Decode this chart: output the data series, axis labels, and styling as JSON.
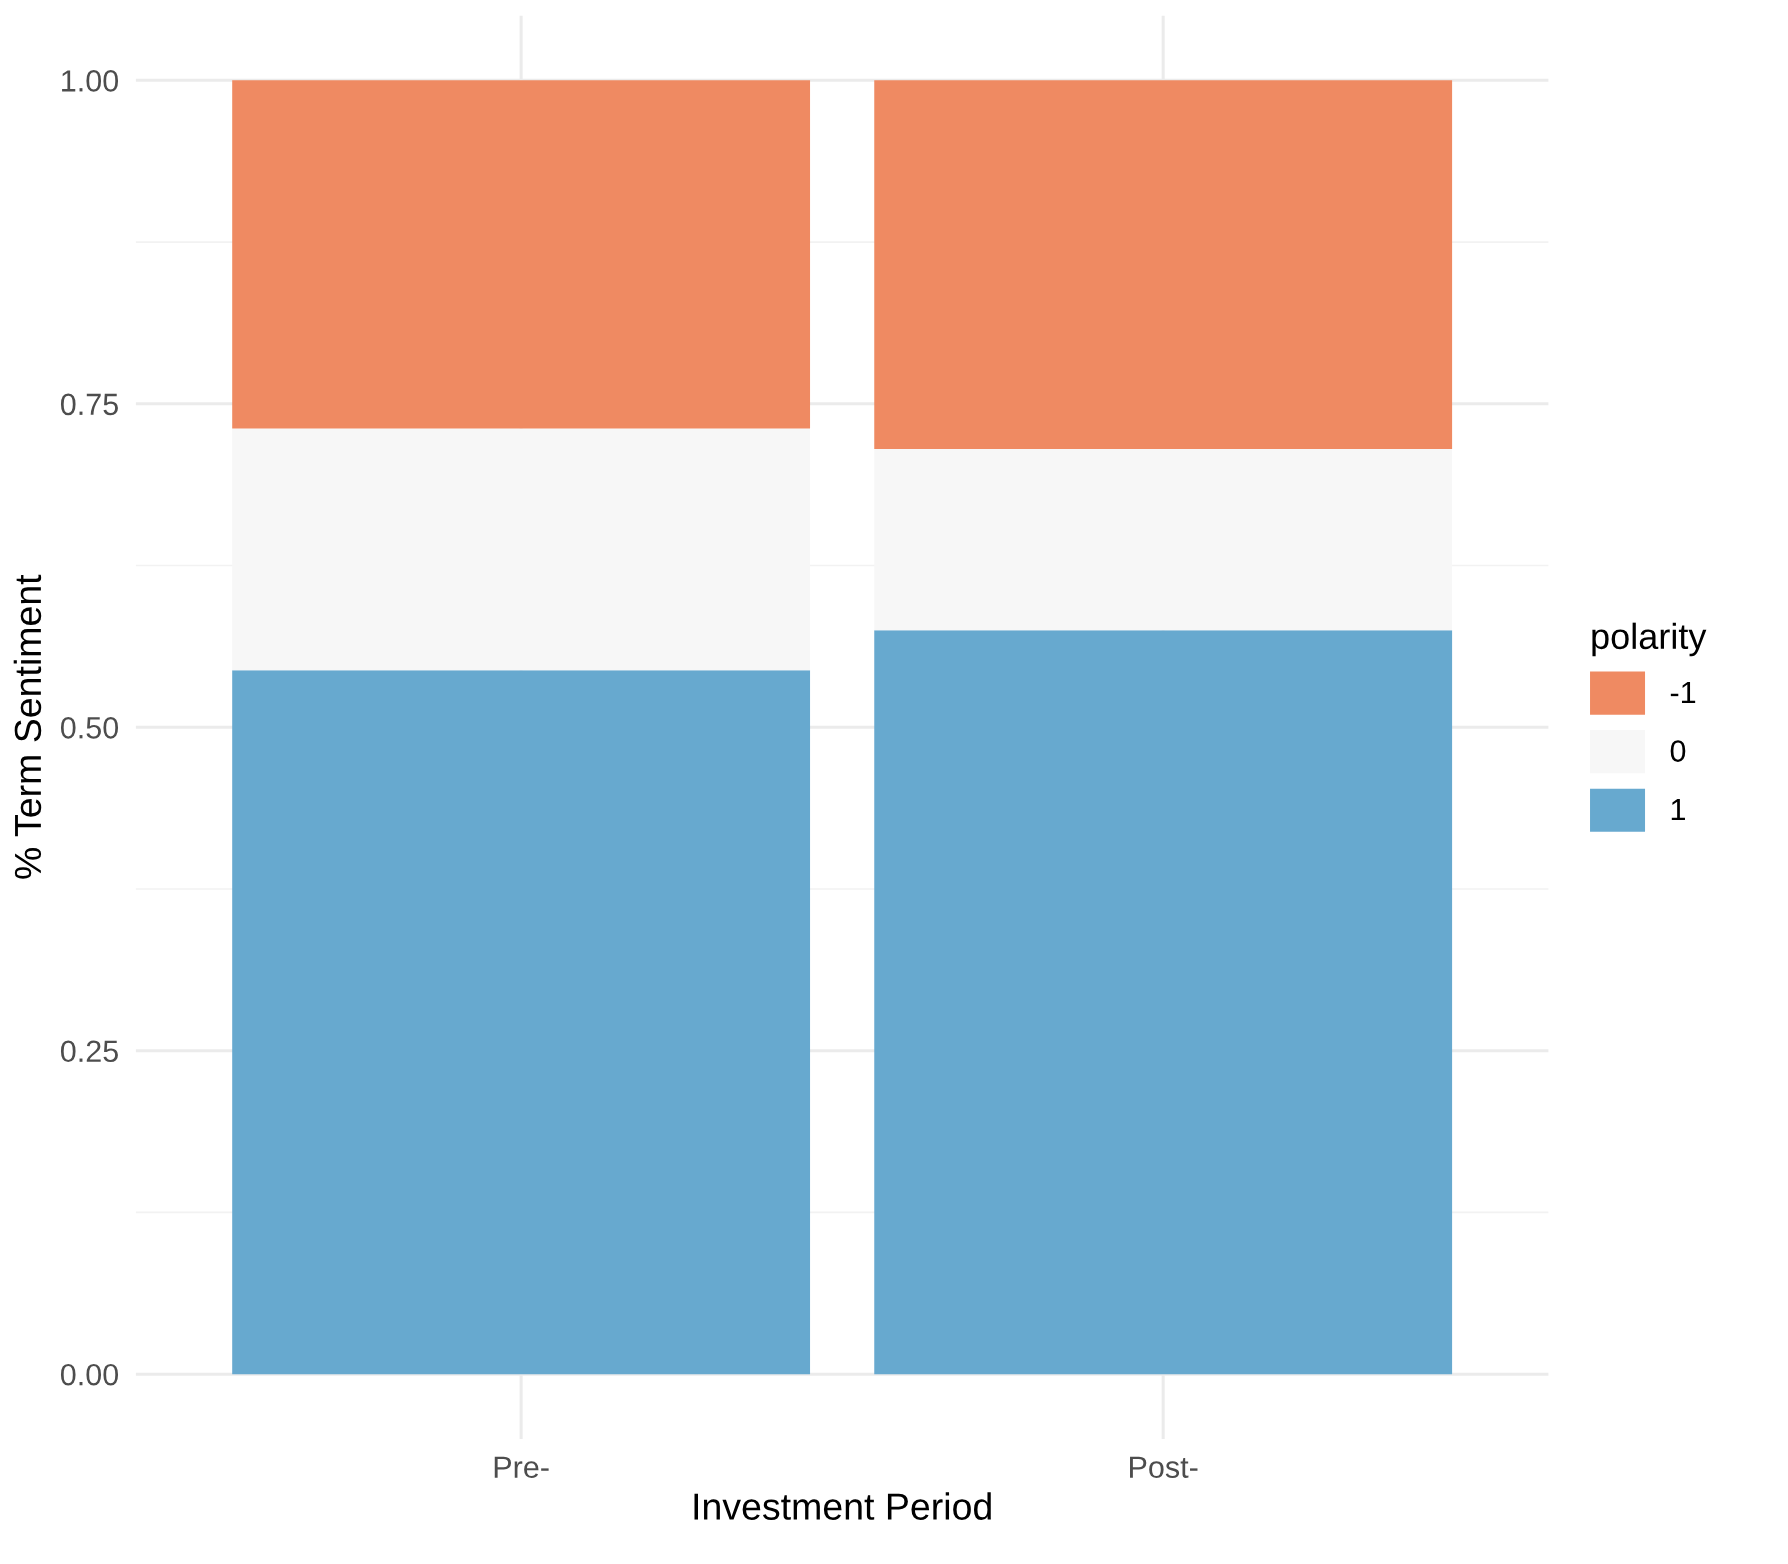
{
  "chart_data": {
    "type": "bar",
    "stacked": true,
    "xlabel": "Investment Period",
    "ylabel": "% Term Sentiment",
    "legend_title": "polarity",
    "categories": [
      "Pre-",
      "Post-"
    ],
    "series": [
      {
        "name": "1",
        "color": "#67a9cf",
        "values": [
          0.544,
          0.575
        ]
      },
      {
        "name": "0",
        "color": "#f7f7f7",
        "values": [
          0.187,
          0.14
        ]
      },
      {
        "name": "-1",
        "color": "#ef8a62",
        "values": [
          0.269,
          0.285
        ]
      }
    ],
    "ylim": [
      -0.05,
      1.05
    ],
    "yticks": [
      {
        "value": 0,
        "label": "0.00"
      },
      {
        "value": 0.25,
        "label": "0.25"
      },
      {
        "value": 0.5,
        "label": "0.50"
      },
      {
        "value": 0.75,
        "label": "0.75"
      },
      {
        "value": 1,
        "label": "1.00"
      }
    ],
    "grid": true,
    "legend": "right"
  }
}
